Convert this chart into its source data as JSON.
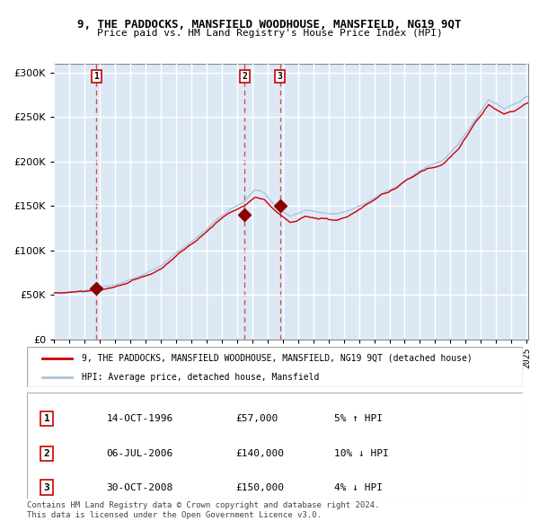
{
  "title1": "9, THE PADDOCKS, MANSFIELD WOODHOUSE, MANSFIELD, NG19 9QT",
  "title2": "Price paid vs. HM Land Registry's House Price Index (HPI)",
  "legend_label1": "9, THE PADDOCKS, MANSFIELD WOODHOUSE, MANSFIELD, NG19 9QT (detached house)",
  "legend_label2": "HPI: Average price, detached house, Mansfield",
  "footer1": "Contains HM Land Registry data © Crown copyright and database right 2024.",
  "footer2": "This data is licensed under the Open Government Licence v3.0.",
  "transactions": [
    {
      "num": "1",
      "date": "14-OCT-1996",
      "price": "£57,000",
      "hpi": "5% ↑ HPI",
      "year": 1996.79
    },
    {
      "num": "2",
      "date": "06-JUL-2006",
      "price": "£140,000",
      "hpi": "10% ↓ HPI",
      "year": 2006.51
    },
    {
      "num": "3",
      "date": "30-OCT-2008",
      "price": "£150,000",
      "hpi": "4% ↓ HPI",
      "year": 2008.83
    }
  ],
  "sale_values": [
    57000,
    140000,
    150000
  ],
  "ylim": [
    0,
    310000
  ],
  "yticks": [
    0,
    50000,
    100000,
    150000,
    200000,
    250000,
    300000
  ],
  "line_color_red": "#cc0000",
  "line_color_blue": "#aac4dd",
  "marker_color": "#8b0000",
  "dashed_color": "#cc3333",
  "bg_color": "#dce9f5",
  "hatch_color": "#c0d0e0",
  "grid_color": "#ffffff",
  "box_color": "#cc0000"
}
